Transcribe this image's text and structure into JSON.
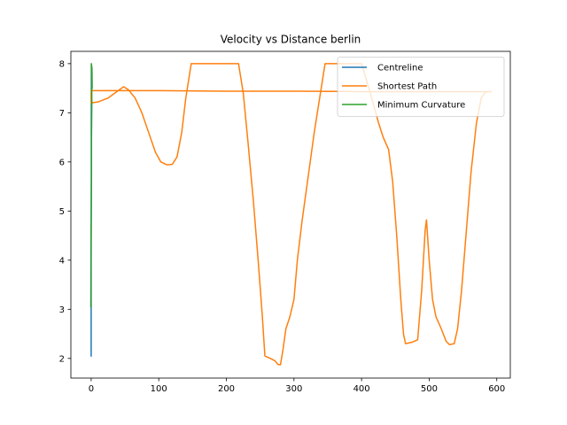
{
  "chart_data": {
    "type": "line",
    "title": "Velocity vs Distance berlin",
    "xlabel": "",
    "ylabel": "",
    "xlim": [
      -30,
      620
    ],
    "ylim": [
      1.6,
      8.25
    ],
    "xticks": [
      0,
      100,
      200,
      300,
      400,
      500,
      600
    ],
    "yticks": [
      2,
      3,
      4,
      5,
      6,
      7,
      8
    ],
    "grid": false,
    "legend": "top-right",
    "series": [
      {
        "name": "Centreline",
        "color": "#1f77b4",
        "points": [
          [
            0,
            2.05
          ],
          [
            0,
            2.9
          ],
          [
            0,
            4.0
          ],
          [
            0.2,
            5.5
          ],
          [
            0.2,
            6.8
          ],
          [
            0.3,
            7.5
          ],
          [
            0.3,
            7.95
          ]
        ]
      },
      {
        "name": "Shortest Path",
        "color": "#ff7f0e",
        "points": [
          [
            0,
            7.45
          ],
          [
            0,
            7.2
          ],
          [
            10,
            7.22
          ],
          [
            25,
            7.3
          ],
          [
            40,
            7.45
          ],
          [
            48,
            7.53
          ],
          [
            55,
            7.47
          ],
          [
            65,
            7.3
          ],
          [
            75,
            7.0
          ],
          [
            85,
            6.6
          ],
          [
            95,
            6.2
          ],
          [
            103,
            6.0
          ],
          [
            112,
            5.94
          ],
          [
            120,
            5.95
          ],
          [
            127,
            6.1
          ],
          [
            134,
            6.6
          ],
          [
            140,
            7.3
          ],
          [
            148,
            8.0
          ],
          [
            160,
            8.0
          ],
          [
            190,
            8.0
          ],
          [
            218,
            8.0
          ],
          [
            225,
            7.4
          ],
          [
            232,
            6.4
          ],
          [
            240,
            5.2
          ],
          [
            247,
            4.0
          ],
          [
            253,
            2.9
          ],
          [
            257,
            2.05
          ],
          [
            265,
            2.0
          ],
          [
            272,
            1.95
          ],
          [
            276,
            1.88
          ],
          [
            280,
            1.87
          ],
          [
            284,
            2.2
          ],
          [
            288,
            2.6
          ],
          [
            294,
            2.85
          ],
          [
            300,
            3.2
          ],
          [
            305,
            4.0
          ],
          [
            312,
            4.8
          ],
          [
            320,
            5.6
          ],
          [
            330,
            6.6
          ],
          [
            338,
            7.3
          ],
          [
            346,
            8.0
          ],
          [
            370,
            8.0
          ],
          [
            400,
            8.0
          ],
          [
            415,
            7.3
          ],
          [
            425,
            6.8
          ],
          [
            432,
            6.5
          ],
          [
            440,
            6.25
          ],
          [
            446,
            5.6
          ],
          [
            452,
            4.5
          ],
          [
            458,
            3.2
          ],
          [
            462,
            2.5
          ],
          [
            465,
            2.3
          ],
          [
            475,
            2.33
          ],
          [
            483,
            2.38
          ],
          [
            489,
            3.4
          ],
          [
            494,
            4.6
          ],
          [
            496,
            4.82
          ],
          [
            500,
            4.0
          ],
          [
            505,
            3.2
          ],
          [
            510,
            2.85
          ],
          [
            518,
            2.6
          ],
          [
            525,
            2.35
          ],
          [
            530,
            2.28
          ],
          [
            537,
            2.3
          ],
          [
            542,
            2.6
          ],
          [
            548,
            3.4
          ],
          [
            555,
            4.6
          ],
          [
            562,
            5.8
          ],
          [
            570,
            6.8
          ],
          [
            577,
            7.3
          ],
          [
            583,
            7.42
          ],
          [
            590,
            7.43
          ],
          [
            592,
            7.43
          ],
          [
            560,
            7.43
          ],
          [
            500,
            7.43
          ],
          [
            400,
            7.43
          ],
          [
            300,
            7.44
          ],
          [
            200,
            7.44
          ],
          [
            100,
            7.45
          ],
          [
            0,
            7.45
          ]
        ]
      },
      {
        "name": "Minimum Curvature",
        "color": "#2ca02c",
        "points": [
          [
            -0.5,
            3.05
          ],
          [
            -0.4,
            3.4
          ],
          [
            -0.3,
            4.2
          ],
          [
            0,
            4.8
          ],
          [
            0.5,
            5.7
          ],
          [
            0.5,
            6.5
          ],
          [
            1,
            7.2
          ],
          [
            0.8,
            7.7
          ],
          [
            0.3,
            8.0
          ],
          [
            1.2,
            7.9
          ],
          [
            1.5,
            7.5
          ]
        ]
      }
    ]
  }
}
